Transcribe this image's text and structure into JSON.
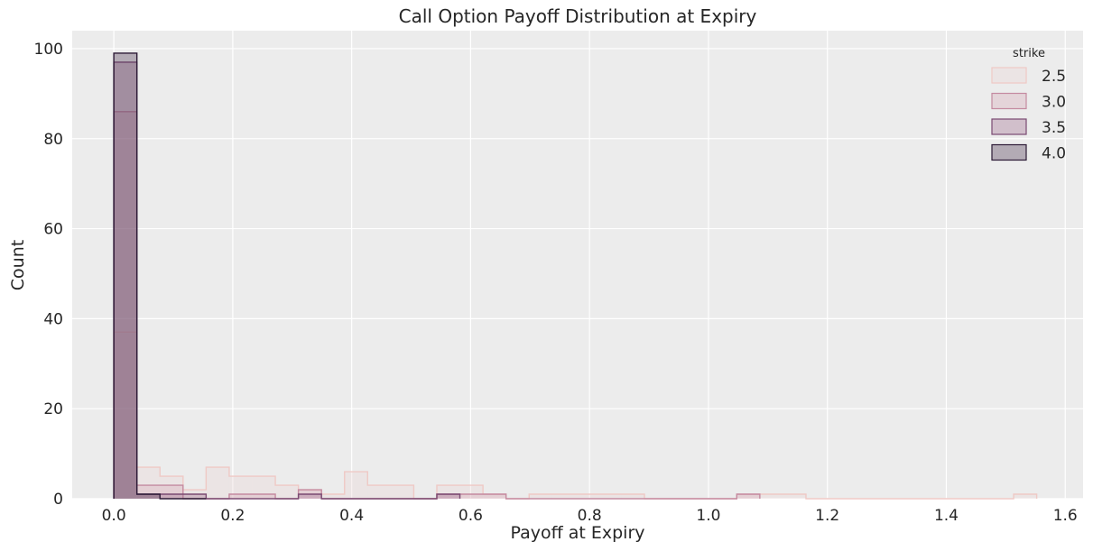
{
  "chart_data": {
    "type": "histogram",
    "title": "Call Option Payoff Distribution at Expiry",
    "xlabel": "Payoff at Expiry",
    "ylabel": "Count",
    "xlim": [
      -0.07,
      1.63
    ],
    "ylim": [
      0,
      104
    ],
    "xticks": [
      0.0,
      0.2,
      0.4,
      0.6,
      0.8,
      1.0,
      1.2,
      1.4,
      1.6
    ],
    "xtick_labels": [
      "0.0",
      "0.2",
      "0.4",
      "0.6",
      "0.8",
      "1.0",
      "1.2",
      "1.4",
      "1.6"
    ],
    "yticks": [
      0,
      20,
      40,
      60,
      80,
      100
    ],
    "ytick_labels": [
      "0",
      "20",
      "40",
      "60",
      "80",
      "100"
    ],
    "grid": true,
    "legend_title": "strike",
    "legend_position": "top-right",
    "bin_width": 0.0388,
    "series": [
      {
        "name": "2.5",
        "fill": "#ecd8d8",
        "stroke": "#efc9c5",
        "bins": [
          [
            0.0,
            0.0388,
            37
          ],
          [
            0.0388,
            0.0776,
            7
          ],
          [
            0.0776,
            0.1164,
            5
          ],
          [
            0.1164,
            0.1552,
            2
          ],
          [
            0.1552,
            0.194,
            7
          ],
          [
            0.194,
            0.2328,
            5
          ],
          [
            0.2328,
            0.2716,
            5
          ],
          [
            0.2716,
            0.3104,
            3
          ],
          [
            0.3104,
            0.3492,
            2
          ],
          [
            0.3492,
            0.388,
            1
          ],
          [
            0.388,
            0.4268,
            6
          ],
          [
            0.4268,
            0.4656,
            3
          ],
          [
            0.4656,
            0.5044,
            3
          ],
          [
            0.5044,
            0.5432,
            0
          ],
          [
            0.5432,
            0.582,
            3
          ],
          [
            0.582,
            0.6208,
            3
          ],
          [
            0.6208,
            0.6596,
            1
          ],
          [
            0.6596,
            0.6984,
            0
          ],
          [
            0.6984,
            0.7372,
            1
          ],
          [
            0.7372,
            0.776,
            1
          ],
          [
            0.776,
            0.8148,
            1
          ],
          [
            0.8148,
            0.8536,
            1
          ],
          [
            0.8536,
            0.8924,
            1
          ],
          [
            0.8924,
            0.9312,
            0
          ],
          [
            0.9312,
            0.97,
            0
          ],
          [
            0.97,
            1.0088,
            0
          ],
          [
            1.0088,
            1.0476,
            0
          ],
          [
            1.0476,
            1.0864,
            1
          ],
          [
            1.0864,
            1.1252,
            1
          ],
          [
            1.1252,
            1.164,
            1
          ],
          [
            1.164,
            1.2028,
            0
          ],
          [
            1.2028,
            1.2416,
            0
          ],
          [
            1.2416,
            1.2804,
            0
          ],
          [
            1.2804,
            1.3192,
            0
          ],
          [
            1.3192,
            1.358,
            0
          ],
          [
            1.358,
            1.3968,
            0
          ],
          [
            1.3968,
            1.4356,
            0
          ],
          [
            1.4356,
            1.4744,
            0
          ],
          [
            1.4744,
            1.5132,
            0
          ],
          [
            1.5132,
            1.552,
            1
          ]
        ]
      },
      {
        "name": "3.0",
        "fill": "#d8a8b8",
        "stroke": "#c48aa0",
        "bins": [
          [
            0.0,
            0.0388,
            86
          ],
          [
            0.0388,
            0.0776,
            3
          ],
          [
            0.0776,
            0.1164,
            3
          ],
          [
            0.1164,
            0.1552,
            0
          ],
          [
            0.1552,
            0.194,
            0
          ],
          [
            0.194,
            0.2328,
            1
          ],
          [
            0.2328,
            0.2716,
            1
          ],
          [
            0.2716,
            0.3104,
            0
          ],
          [
            0.3104,
            0.3492,
            2
          ],
          [
            0.3492,
            0.388,
            0
          ],
          [
            0.388,
            0.4268,
            0
          ],
          [
            0.4268,
            0.4656,
            0
          ],
          [
            0.4656,
            0.5044,
            0
          ],
          [
            0.5044,
            0.5432,
            0
          ],
          [
            0.5432,
            0.582,
            1
          ],
          [
            0.582,
            0.6208,
            1
          ],
          [
            0.6208,
            0.6596,
            1
          ],
          [
            0.6596,
            0.6984,
            0
          ],
          [
            0.6984,
            0.7372,
            0
          ],
          [
            0.7372,
            0.776,
            0
          ],
          [
            0.776,
            0.8148,
            0
          ],
          [
            0.8148,
            0.8536,
            0
          ],
          [
            0.8536,
            0.8924,
            0
          ],
          [
            0.8924,
            0.9312,
            0
          ],
          [
            0.9312,
            0.97,
            0
          ],
          [
            0.97,
            1.0088,
            0
          ],
          [
            1.0088,
            1.0476,
            0
          ],
          [
            1.0476,
            1.0864,
            1
          ]
        ]
      },
      {
        "name": "3.5",
        "fill": "#a06c8f",
        "stroke": "#7a4a72",
        "bins": [
          [
            0.0,
            0.0388,
            97
          ],
          [
            0.0388,
            0.0776,
            1
          ],
          [
            0.0776,
            0.1164,
            1
          ],
          [
            0.1164,
            0.1552,
            1
          ],
          [
            0.1552,
            0.194,
            0
          ],
          [
            0.194,
            0.2328,
            0
          ],
          [
            0.2328,
            0.2716,
            0
          ],
          [
            0.2716,
            0.3104,
            0
          ],
          [
            0.3104,
            0.3492,
            1
          ],
          [
            0.3492,
            0.388,
            0
          ],
          [
            0.388,
            0.4268,
            0
          ],
          [
            0.4268,
            0.4656,
            0
          ],
          [
            0.4656,
            0.5044,
            0
          ],
          [
            0.5044,
            0.5432,
            0
          ],
          [
            0.5432,
            0.582,
            1
          ]
        ]
      },
      {
        "name": "4.0",
        "fill": "#4a3550",
        "stroke": "#2c1a36",
        "bins": [
          [
            0.0,
            0.0388,
            99
          ],
          [
            0.0388,
            0.0776,
            1
          ],
          [
            0.0776,
            0.1164,
            0
          ],
          [
            0.1164,
            0.1552,
            0
          ]
        ]
      }
    ]
  }
}
